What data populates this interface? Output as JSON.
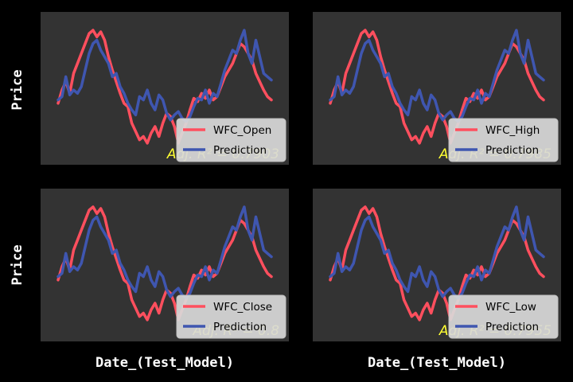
{
  "figure": {
    "background": "#000000",
    "panel_background": "#333333",
    "colors": {
      "actual": "#ff4f5e",
      "prediction": "#3f56b0",
      "annotation": "#ffff33"
    },
    "row_ylabels": [
      "Price",
      "Price"
    ],
    "col_xlabels": [
      "Date_(Test_Model)",
      "Date_(Test_Model)"
    ]
  },
  "chart_data": [
    {
      "type": "line",
      "title": "",
      "xlabel": "",
      "ylabel": "Price",
      "grid": false,
      "legend_position": "bottom-right",
      "annotation": "Adj. R² = 0.7903",
      "series": [
        {
          "name": "WFC_Open",
          "role": "actual",
          "values": [
            0.42,
            0.5,
            0.55,
            0.48,
            0.6,
            0.66,
            0.72,
            0.78,
            0.84,
            0.86,
            0.82,
            0.85,
            0.8,
            0.7,
            0.62,
            0.55,
            0.48,
            0.42,
            0.4,
            0.3,
            0.25,
            0.2,
            0.22,
            0.18,
            0.24,
            0.28,
            0.22,
            0.3,
            0.36,
            0.34,
            0.28,
            0.18,
            0.24,
            0.3,
            0.38,
            0.45,
            0.43,
            0.48,
            0.45,
            0.5,
            0.44,
            0.46,
            0.52,
            0.58,
            0.62,
            0.66,
            0.72,
            0.78,
            0.76,
            0.72,
            0.68,
            0.6,
            0.55,
            0.5,
            0.46,
            0.44
          ]
        },
        {
          "name": "Prediction",
          "role": "prediction",
          "values": [
            0.44,
            0.46,
            0.58,
            0.47,
            0.5,
            0.48,
            0.52,
            0.62,
            0.72,
            0.78,
            0.8,
            0.74,
            0.7,
            0.66,
            0.58,
            0.6,
            0.52,
            0.48,
            0.42,
            0.38,
            0.35,
            0.46,
            0.44,
            0.5,
            0.42,
            0.38,
            0.47,
            0.44,
            0.36,
            0.32,
            0.35,
            0.37,
            0.33,
            0.31,
            0.34,
            0.4,
            0.45,
            0.44,
            0.5,
            0.42,
            0.48,
            0.46,
            0.54,
            0.62,
            0.68,
            0.74,
            0.72,
            0.8,
            0.86,
            0.72,
            0.66,
            0.8,
            0.7,
            0.6,
            0.58,
            0.56
          ]
        }
      ]
    },
    {
      "type": "line",
      "title": "",
      "xlabel": "",
      "ylabel": "",
      "grid": false,
      "legend_position": "bottom-right",
      "annotation": "Adj. R² = 0.7985",
      "series": [
        {
          "name": "WFC_High",
          "role": "actual",
          "values": [
            0.42,
            0.5,
            0.55,
            0.48,
            0.6,
            0.66,
            0.72,
            0.78,
            0.84,
            0.86,
            0.82,
            0.85,
            0.8,
            0.7,
            0.62,
            0.55,
            0.48,
            0.42,
            0.4,
            0.3,
            0.25,
            0.2,
            0.22,
            0.18,
            0.24,
            0.28,
            0.22,
            0.3,
            0.36,
            0.34,
            0.28,
            0.18,
            0.24,
            0.3,
            0.38,
            0.45,
            0.43,
            0.48,
            0.45,
            0.5,
            0.44,
            0.46,
            0.52,
            0.58,
            0.62,
            0.66,
            0.72,
            0.78,
            0.76,
            0.72,
            0.68,
            0.6,
            0.55,
            0.5,
            0.46,
            0.44
          ]
        },
        {
          "name": "Prediction",
          "role": "prediction",
          "values": [
            0.44,
            0.46,
            0.58,
            0.47,
            0.5,
            0.48,
            0.52,
            0.62,
            0.72,
            0.78,
            0.8,
            0.74,
            0.7,
            0.66,
            0.58,
            0.6,
            0.52,
            0.48,
            0.42,
            0.38,
            0.35,
            0.46,
            0.44,
            0.5,
            0.42,
            0.38,
            0.47,
            0.44,
            0.36,
            0.32,
            0.35,
            0.37,
            0.33,
            0.31,
            0.34,
            0.4,
            0.45,
            0.44,
            0.5,
            0.42,
            0.48,
            0.46,
            0.54,
            0.62,
            0.68,
            0.74,
            0.72,
            0.8,
            0.86,
            0.72,
            0.66,
            0.8,
            0.7,
            0.6,
            0.58,
            0.56
          ]
        }
      ]
    },
    {
      "type": "line",
      "title": "",
      "xlabel": "Date_(Test_Model)",
      "ylabel": "Price",
      "grid": false,
      "legend_position": "bottom-right",
      "annotation": "Adj. R² = 0.8",
      "series": [
        {
          "name": "WFC_Close",
          "role": "actual",
          "values": [
            0.42,
            0.5,
            0.55,
            0.48,
            0.6,
            0.66,
            0.72,
            0.78,
            0.84,
            0.86,
            0.82,
            0.85,
            0.8,
            0.7,
            0.62,
            0.55,
            0.48,
            0.42,
            0.4,
            0.3,
            0.25,
            0.2,
            0.22,
            0.18,
            0.24,
            0.28,
            0.22,
            0.3,
            0.36,
            0.34,
            0.28,
            0.18,
            0.24,
            0.3,
            0.38,
            0.45,
            0.43,
            0.48,
            0.45,
            0.5,
            0.44,
            0.46,
            0.52,
            0.58,
            0.62,
            0.66,
            0.72,
            0.78,
            0.76,
            0.72,
            0.68,
            0.6,
            0.55,
            0.5,
            0.46,
            0.44
          ]
        },
        {
          "name": "Prediction",
          "role": "prediction",
          "values": [
            0.44,
            0.46,
            0.58,
            0.47,
            0.5,
            0.48,
            0.52,
            0.62,
            0.72,
            0.78,
            0.8,
            0.74,
            0.7,
            0.66,
            0.58,
            0.6,
            0.52,
            0.48,
            0.42,
            0.38,
            0.35,
            0.46,
            0.44,
            0.5,
            0.42,
            0.38,
            0.47,
            0.44,
            0.36,
            0.32,
            0.35,
            0.37,
            0.33,
            0.31,
            0.34,
            0.4,
            0.45,
            0.44,
            0.5,
            0.42,
            0.48,
            0.46,
            0.54,
            0.62,
            0.68,
            0.74,
            0.72,
            0.8,
            0.86,
            0.72,
            0.66,
            0.8,
            0.7,
            0.6,
            0.58,
            0.56
          ]
        }
      ]
    },
    {
      "type": "line",
      "title": "",
      "xlabel": "Date_(Test_Model)",
      "ylabel": "",
      "grid": false,
      "legend_position": "bottom-right",
      "annotation": "Adj. R² = 0.7955",
      "series": [
        {
          "name": "WFC_Low",
          "role": "actual",
          "values": [
            0.42,
            0.5,
            0.55,
            0.48,
            0.6,
            0.66,
            0.72,
            0.78,
            0.84,
            0.86,
            0.82,
            0.85,
            0.8,
            0.7,
            0.62,
            0.55,
            0.48,
            0.42,
            0.4,
            0.3,
            0.25,
            0.2,
            0.22,
            0.18,
            0.24,
            0.28,
            0.22,
            0.3,
            0.36,
            0.34,
            0.28,
            0.18,
            0.24,
            0.3,
            0.38,
            0.45,
            0.43,
            0.48,
            0.45,
            0.5,
            0.44,
            0.46,
            0.52,
            0.58,
            0.62,
            0.66,
            0.72,
            0.78,
            0.76,
            0.72,
            0.68,
            0.6,
            0.55,
            0.5,
            0.46,
            0.44
          ]
        },
        {
          "name": "Prediction",
          "role": "prediction",
          "values": [
            0.44,
            0.46,
            0.58,
            0.47,
            0.5,
            0.48,
            0.52,
            0.62,
            0.72,
            0.78,
            0.8,
            0.74,
            0.7,
            0.66,
            0.58,
            0.6,
            0.52,
            0.48,
            0.42,
            0.38,
            0.35,
            0.46,
            0.44,
            0.5,
            0.42,
            0.38,
            0.47,
            0.44,
            0.36,
            0.32,
            0.35,
            0.37,
            0.33,
            0.31,
            0.34,
            0.4,
            0.45,
            0.44,
            0.5,
            0.42,
            0.48,
            0.46,
            0.54,
            0.62,
            0.68,
            0.74,
            0.72,
            0.8,
            0.86,
            0.72,
            0.66,
            0.8,
            0.7,
            0.6,
            0.58,
            0.56
          ]
        }
      ]
    }
  ]
}
